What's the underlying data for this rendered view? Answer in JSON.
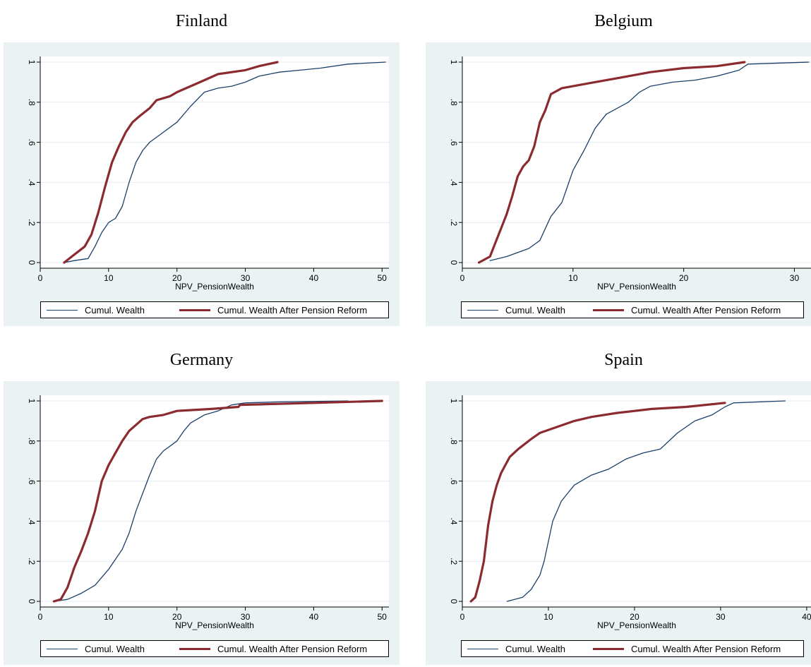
{
  "legend": {
    "wealth_label": "Cumul. Wealth",
    "reform_label": "Cumul. Wealth After Pension Reform"
  },
  "xaxis_label": "NPV_PensionWealth",
  "colors": {
    "wealth": "#1b3f6b",
    "reform": "#8b2b30",
    "plot_bg": "#eaf2f3",
    "grid": "#ffffff"
  },
  "chart_data": [
    {
      "type": "line",
      "title": "Finland",
      "xlabel": "NPV_PensionWealth",
      "ylabel": "",
      "xlim": [
        0,
        51
      ],
      "ylim": [
        0,
        1
      ],
      "xticks": [
        0,
        10,
        20,
        30,
        40,
        50
      ],
      "yticks": [
        0,
        0.2,
        0.4,
        0.6,
        0.8,
        1
      ],
      "ytick_labels": [
        "0",
        ".2",
        ".4",
        ".6",
        ".8",
        "1"
      ],
      "series": [
        {
          "name": "Cumul. Wealth",
          "points": [
            [
              3.5,
              0
            ],
            [
              5,
              0.01
            ],
            [
              7,
              0.02
            ],
            [
              8,
              0.08
            ],
            [
              9,
              0.15
            ],
            [
              10,
              0.2
            ],
            [
              11,
              0.22
            ],
            [
              12,
              0.28
            ],
            [
              13,
              0.4
            ],
            [
              14,
              0.5
            ],
            [
              15,
              0.56
            ],
            [
              16,
              0.6
            ],
            [
              18,
              0.65
            ],
            [
              20,
              0.7
            ],
            [
              22,
              0.78
            ],
            [
              24,
              0.85
            ],
            [
              26,
              0.87
            ],
            [
              28,
              0.88
            ],
            [
              30,
              0.9
            ],
            [
              32,
              0.93
            ],
            [
              35,
              0.95
            ],
            [
              38,
              0.96
            ],
            [
              41,
              0.97
            ],
            [
              45,
              0.99
            ],
            [
              50.5,
              1
            ]
          ]
        },
        {
          "name": "Cumul. Wealth After Pension Reform",
          "points": [
            [
              3.5,
              0
            ],
            [
              5,
              0.04
            ],
            [
              6.5,
              0.08
            ],
            [
              7.5,
              0.14
            ],
            [
              8.5,
              0.25
            ],
            [
              9.5,
              0.38
            ],
            [
              10.5,
              0.5
            ],
            [
              11.5,
              0.58
            ],
            [
              12.5,
              0.65
            ],
            [
              13.5,
              0.7
            ],
            [
              14.5,
              0.73
            ],
            [
              16,
              0.77
            ],
            [
              17,
              0.81
            ],
            [
              19,
              0.83
            ],
            [
              20,
              0.85
            ],
            [
              22,
              0.88
            ],
            [
              24,
              0.91
            ],
            [
              26,
              0.94
            ],
            [
              30,
              0.96
            ],
            [
              32,
              0.98
            ],
            [
              34.7,
              1
            ]
          ]
        }
      ]
    },
    {
      "type": "line",
      "title": "Belgium",
      "xlabel": "NPV_PensionWealth",
      "ylabel": "",
      "xlim": [
        0,
        31.5
      ],
      "ylim": [
        0,
        1
      ],
      "xticks": [
        0,
        10,
        20,
        30
      ],
      "yticks": [
        0,
        0.2,
        0.4,
        0.6,
        0.8,
        1
      ],
      "ytick_labels": [
        "0",
        ".2",
        ".4",
        ".6",
        ".8",
        "1"
      ],
      "series": [
        {
          "name": "Cumul. Wealth",
          "points": [
            [
              2.5,
              0.01
            ],
            [
              4,
              0.03
            ],
            [
              6,
              0.07
            ],
            [
              7,
              0.11
            ],
            [
              7.5,
              0.17
            ],
            [
              8,
              0.23
            ],
            [
              9,
              0.3
            ],
            [
              9.5,
              0.38
            ],
            [
              10,
              0.46
            ],
            [
              11,
              0.56
            ],
            [
              12,
              0.67
            ],
            [
              13,
              0.74
            ],
            [
              14,
              0.77
            ],
            [
              15,
              0.8
            ],
            [
              16,
              0.85
            ],
            [
              17,
              0.88
            ],
            [
              19,
              0.9
            ],
            [
              21,
              0.91
            ],
            [
              23,
              0.93
            ],
            [
              25,
              0.96
            ],
            [
              25.8,
              0.99
            ],
            [
              31.3,
              1
            ]
          ]
        },
        {
          "name": "Cumul. Wealth After Pension Reform",
          "points": [
            [
              1.5,
              0
            ],
            [
              2.5,
              0.03
            ],
            [
              3,
              0.1
            ],
            [
              3.5,
              0.17
            ],
            [
              4,
              0.24
            ],
            [
              4.5,
              0.33
            ],
            [
              5,
              0.43
            ],
            [
              5.5,
              0.48
            ],
            [
              6,
              0.51
            ],
            [
              6.5,
              0.58
            ],
            [
              7,
              0.7
            ],
            [
              7.5,
              0.76
            ],
            [
              8,
              0.84
            ],
            [
              9,
              0.87
            ],
            [
              11,
              0.89
            ],
            [
              13,
              0.91
            ],
            [
              15,
              0.93
            ],
            [
              17,
              0.95
            ],
            [
              20,
              0.97
            ],
            [
              23,
              0.98
            ],
            [
              25.5,
              1
            ]
          ]
        }
      ]
    },
    {
      "type": "line",
      "title": "Germany",
      "xlabel": "NPV_PensionWealth",
      "ylabel": "",
      "xlim": [
        0,
        51
      ],
      "ylim": [
        0,
        1
      ],
      "xticks": [
        0,
        10,
        20,
        30,
        40,
        50
      ],
      "yticks": [
        0,
        0.2,
        0.4,
        0.6,
        0.8,
        1
      ],
      "ytick_labels": [
        "0",
        ".2",
        ".4",
        ".6",
        ".8",
        "1"
      ],
      "series": [
        {
          "name": "Cumul. Wealth",
          "points": [
            [
              2,
              0
            ],
            [
              4,
              0.01
            ],
            [
              6,
              0.04
            ],
            [
              8,
              0.08
            ],
            [
              10,
              0.16
            ],
            [
              12,
              0.26
            ],
            [
              13,
              0.34
            ],
            [
              14,
              0.45
            ],
            [
              15,
              0.54
            ],
            [
              16,
              0.63
            ],
            [
              17,
              0.71
            ],
            [
              18,
              0.75
            ],
            [
              20,
              0.8
            ],
            [
              21,
              0.85
            ],
            [
              22,
              0.89
            ],
            [
              24,
              0.93
            ],
            [
              26,
              0.95
            ],
            [
              28,
              0.98
            ],
            [
              30,
              0.99
            ],
            [
              35,
              0.995
            ],
            [
              45,
              1
            ]
          ]
        },
        {
          "name": "Cumul. Wealth After Pension Reform",
          "points": [
            [
              2,
              0
            ],
            [
              3,
              0.01
            ],
            [
              4,
              0.07
            ],
            [
              5,
              0.17
            ],
            [
              6,
              0.25
            ],
            [
              7,
              0.34
            ],
            [
              8,
              0.45
            ],
            [
              9,
              0.6
            ],
            [
              10,
              0.68
            ],
            [
              11,
              0.74
            ],
            [
              12,
              0.8
            ],
            [
              13,
              0.85
            ],
            [
              14,
              0.88
            ],
            [
              15,
              0.91
            ],
            [
              16,
              0.92
            ],
            [
              18,
              0.93
            ],
            [
              20,
              0.95
            ],
            [
              25,
              0.96
            ],
            [
              29,
              0.97
            ],
            [
              29.2,
              0.98
            ],
            [
              40,
              0.99
            ],
            [
              50,
              1
            ]
          ]
        }
      ]
    },
    {
      "type": "line",
      "title": "Spain",
      "xlabel": "NPV_PensionWealth",
      "ylabel": "",
      "xlim": [
        0,
        40.5
      ],
      "ylim": [
        0,
        1
      ],
      "xticks": [
        0,
        10,
        20,
        30,
        40
      ],
      "yticks": [
        0,
        0.2,
        0.4,
        0.6,
        0.8,
        1
      ],
      "ytick_labels": [
        "0",
        ".2",
        ".4",
        ".6",
        ".8",
        "1"
      ],
      "series": [
        {
          "name": "Cumul. Wealth",
          "points": [
            [
              5.2,
              0
            ],
            [
              7,
              0.02
            ],
            [
              8,
              0.06
            ],
            [
              9,
              0.13
            ],
            [
              9.5,
              0.2
            ],
            [
              10,
              0.3
            ],
            [
              10.5,
              0.4
            ],
            [
              11.5,
              0.5
            ],
            [
              13,
              0.58
            ],
            [
              15,
              0.63
            ],
            [
              17,
              0.66
            ],
            [
              19,
              0.71
            ],
            [
              21,
              0.74
            ],
            [
              23,
              0.76
            ],
            [
              25,
              0.84
            ],
            [
              27,
              0.9
            ],
            [
              29,
              0.93
            ],
            [
              30.5,
              0.97
            ],
            [
              31.5,
              0.99
            ],
            [
              37.5,
              1
            ]
          ]
        },
        {
          "name": "Cumul. Wealth After Pension Reform",
          "points": [
            [
              1,
              0
            ],
            [
              1.5,
              0.02
            ],
            [
              2,
              0.1
            ],
            [
              2.5,
              0.2
            ],
            [
              3,
              0.38
            ],
            [
              3.5,
              0.5
            ],
            [
              4,
              0.58
            ],
            [
              4.5,
              0.64
            ],
            [
              5.5,
              0.72
            ],
            [
              6.5,
              0.76
            ],
            [
              8,
              0.81
            ],
            [
              9,
              0.84
            ],
            [
              11,
              0.87
            ],
            [
              13,
              0.9
            ],
            [
              15,
              0.92
            ],
            [
              18,
              0.94
            ],
            [
              22,
              0.96
            ],
            [
              26,
              0.97
            ],
            [
              30.5,
              0.99
            ]
          ]
        }
      ]
    }
  ]
}
